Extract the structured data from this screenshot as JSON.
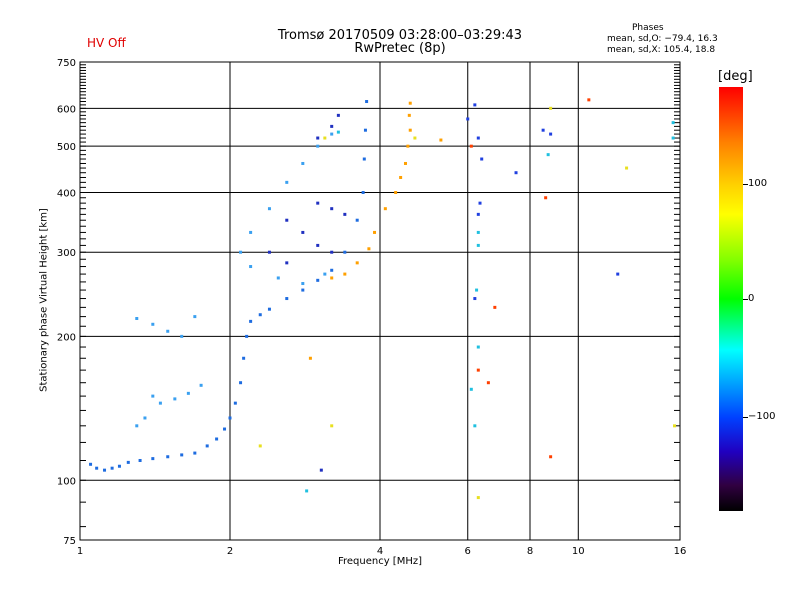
{
  "header": {
    "hv_status": "HV Off",
    "title_line1": "Tromsø 20170509 03:28:00–03:29:43",
    "title_line2": "RwPretec (8p)",
    "phases_heading": "Phases",
    "phases_o": "mean, sd,O: −79.4, 16.3",
    "phases_x": "mean, sd,X: 105.4, 18.8"
  },
  "colorbar": {
    "title": "[deg]",
    "ticks": [
      "100",
      "0",
      "−100"
    ],
    "tick_values": [
      100,
      0,
      -100
    ],
    "range": [
      -180,
      180
    ]
  },
  "chart_data": {
    "type": "scatter",
    "xlabel": "Frequency [MHz]",
    "ylabel": "Stationary phase Virtual Height [km]",
    "xscale": "log",
    "yscale": "log",
    "xlim": [
      1,
      16
    ],
    "ylim": [
      75,
      750
    ],
    "xticks": [
      "1",
      "2",
      "4",
      "6",
      "8",
      "10",
      "16"
    ],
    "xtick_values": [
      1,
      2,
      4,
      6,
      8,
      10,
      16
    ],
    "yticks": [
      "750",
      "600",
      "500",
      "400",
      "300",
      "200",
      "100",
      "75"
    ],
    "ytick_values": [
      750,
      600,
      500,
      400,
      300,
      200,
      100,
      75
    ],
    "grid": true,
    "series": [
      {
        "color": "#1e6ce0",
        "points": [
          [
            1.05,
            108
          ],
          [
            1.08,
            106
          ],
          [
            1.12,
            105
          ],
          [
            1.16,
            106
          ],
          [
            1.2,
            107
          ],
          [
            1.25,
            109
          ],
          [
            1.32,
            110
          ],
          [
            1.4,
            111
          ],
          [
            1.5,
            112
          ],
          [
            1.6,
            113
          ],
          [
            1.7,
            114
          ],
          [
            1.8,
            118
          ],
          [
            1.88,
            122
          ],
          [
            1.95,
            128
          ],
          [
            2.0,
            135
          ],
          [
            2.05,
            145
          ],
          [
            2.1,
            160
          ],
          [
            2.13,
            180
          ],
          [
            2.16,
            200
          ],
          [
            2.2,
            215
          ],
          [
            2.3,
            222
          ],
          [
            2.4,
            228
          ],
          [
            2.6,
            240
          ],
          [
            2.8,
            250
          ],
          [
            3.0,
            262
          ],
          [
            3.2,
            275
          ],
          [
            3.4,
            300
          ],
          [
            3.6,
            350
          ],
          [
            3.7,
            400
          ],
          [
            3.72,
            470
          ],
          [
            3.74,
            540
          ],
          [
            3.76,
            620
          ]
        ]
      },
      {
        "color": "#3aa0f0",
        "points": [
          [
            1.3,
            130
          ],
          [
            1.35,
            135
          ],
          [
            1.4,
            150
          ],
          [
            1.45,
            145
          ],
          [
            1.55,
            148
          ],
          [
            1.65,
            152
          ],
          [
            1.75,
            158
          ],
          [
            1.3,
            218
          ],
          [
            1.4,
            212
          ],
          [
            1.5,
            205
          ],
          [
            1.6,
            200
          ],
          [
            1.7,
            220
          ],
          [
            2.1,
            300
          ],
          [
            2.2,
            330
          ],
          [
            2.4,
            370
          ],
          [
            2.6,
            420
          ],
          [
            2.8,
            460
          ],
          [
            3.0,
            500
          ],
          [
            3.2,
            530
          ],
          [
            2.2,
            280
          ],
          [
            2.5,
            265
          ],
          [
            2.8,
            258
          ],
          [
            3.1,
            270
          ]
        ]
      },
      {
        "color": "#2030c0",
        "points": [
          [
            2.6,
            350
          ],
          [
            2.8,
            330
          ],
          [
            3.0,
            310
          ],
          [
            3.2,
            300
          ],
          [
            3.0,
            380
          ],
          [
            3.2,
            370
          ],
          [
            3.4,
            360
          ],
          [
            3.0,
            520
          ],
          [
            3.2,
            550
          ],
          [
            3.3,
            580
          ],
          [
            2.4,
            300
          ],
          [
            2.6,
            285
          ],
          [
            3.05,
            105
          ]
        ]
      },
      {
        "color": "#ffa000",
        "points": [
          [
            3.4,
            270
          ],
          [
            3.6,
            285
          ],
          [
            3.8,
            305
          ],
          [
            3.9,
            330
          ],
          [
            4.1,
            370
          ],
          [
            4.3,
            400
          ],
          [
            4.4,
            430
          ],
          [
            4.5,
            460
          ],
          [
            4.55,
            500
          ],
          [
            4.6,
            540
          ],
          [
            4.58,
            580
          ],
          [
            4.6,
            615
          ],
          [
            2.9,
            180
          ],
          [
            5.3,
            515
          ],
          [
            3.2,
            265
          ]
        ]
      },
      {
        "color": "#20c0e0",
        "points": [
          [
            6.3,
            310
          ],
          [
            6.3,
            330
          ],
          [
            6.25,
            250
          ],
          [
            6.3,
            190
          ],
          [
            6.1,
            155
          ],
          [
            6.2,
            130
          ],
          [
            8.7,
            480
          ],
          [
            15.5,
            560
          ],
          [
            15.5,
            520
          ],
          [
            2.85,
            95
          ],
          [
            3.3,
            535
          ]
        ]
      },
      {
        "color": "#2040e0",
        "points": [
          [
            6.3,
            360
          ],
          [
            6.35,
            380
          ],
          [
            6.2,
            610
          ],
          [
            6.3,
            520
          ],
          [
            6.4,
            470
          ],
          [
            7.5,
            440
          ],
          [
            8.5,
            540
          ],
          [
            8.8,
            530
          ],
          [
            6.0,
            570
          ],
          [
            12.0,
            270
          ],
          [
            6.2,
            240
          ]
        ]
      },
      {
        "color": "#ff4000",
        "points": [
          [
            6.3,
            170
          ],
          [
            6.6,
            160
          ],
          [
            6.8,
            230
          ],
          [
            8.6,
            390
          ],
          [
            8.8,
            112
          ],
          [
            10.5,
            625
          ],
          [
            6.1,
            500
          ]
        ]
      },
      {
        "color": "#e8e020",
        "points": [
          [
            6.3,
            92
          ],
          [
            8.8,
            600
          ],
          [
            12.5,
            450
          ],
          [
            15.6,
            130
          ],
          [
            2.3,
            118
          ],
          [
            3.1,
            520
          ],
          [
            3.2,
            130
          ],
          [
            4.7,
            520
          ]
        ]
      }
    ]
  }
}
